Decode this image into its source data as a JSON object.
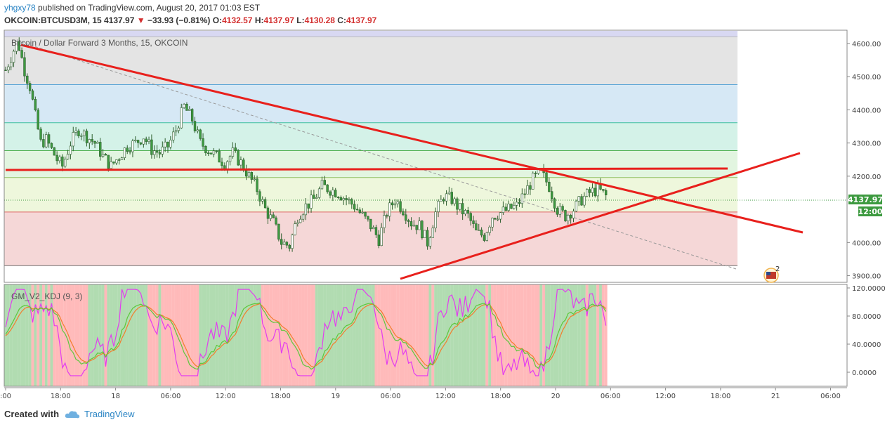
{
  "header": {
    "user": "yhgxy78",
    "published": "published on TradingView.com, August 20, 2017 01:03 EST"
  },
  "quote": {
    "symbol": "OKCOIN:BTCUSD3M, 15",
    "last": "4137.97",
    "change_arrow": "▼",
    "change": "−33.93 (−0.81%)",
    "o_label": "O:",
    "o": "4132.57",
    "h_label": "H:",
    "h": "4137.97",
    "l_label": "L:",
    "l": "4130.28",
    "c_label": "C:",
    "c": "4137.97"
  },
  "price_badge": {
    "value": "4137.97",
    "time": "12:00"
  },
  "footer": {
    "created_with": "Created with",
    "brand": "TradingView"
  },
  "colors": {
    "trendline": "#e8201c",
    "candle": "#3d9a40",
    "k_line": "#e33cf0",
    "d_line": "#f37d2c",
    "j_line": "#5cc83b",
    "up_shade": "#a8d8a8",
    "down_shade": "#ffb3b3"
  },
  "chart_data": [
    {
      "type": "candlestick",
      "title": "Bitcoin / Dollar Forward 3 Months, 15, OKCOIN",
      "ylim": [
        3880,
        4640
      ],
      "y_ticks": [
        {
          "v": 4600,
          "label": "4600.00"
        },
        {
          "v": 4500,
          "label": "4500.00"
        },
        {
          "v": 4400,
          "label": "4400.00"
        },
        {
          "v": 4300,
          "label": "4300.00"
        },
        {
          "v": 4200,
          "label": "4200.00"
        },
        {
          "v": 4000,
          "label": "4000.00"
        },
        {
          "v": 3900,
          "label": "3900.00"
        }
      ],
      "x_ticks": [
        ":00",
        "18:00",
        "18",
        "06:00",
        "12:00",
        "18:00",
        "19",
        "06:00",
        "12:00",
        "18:00",
        "20",
        "06:00",
        "12:00",
        "18:00",
        "21",
        "06:00"
      ],
      "fib_levels": [
        4620,
        4476,
        4361,
        4277,
        4196,
        4092,
        3930
      ],
      "trend_points": [
        [
          0,
          4520
        ],
        [
          2,
          4560
        ],
        [
          4,
          4600
        ],
        [
          5,
          4590
        ],
        [
          7,
          4520
        ],
        [
          9,
          4470
        ],
        [
          11,
          4380
        ],
        [
          13,
          4300
        ],
        [
          15,
          4310
        ],
        [
          17,
          4280
        ],
        [
          19,
          4250
        ],
        [
          21,
          4230
        ],
        [
          24,
          4300
        ],
        [
          27,
          4340
        ],
        [
          30,
          4320
        ],
        [
          33,
          4300
        ],
        [
          36,
          4260
        ],
        [
          39,
          4230
        ],
        [
          42,
          4260
        ],
        [
          45,
          4290
        ],
        [
          48,
          4300
        ],
        [
          51,
          4320
        ],
        [
          54,
          4280
        ],
        [
          57,
          4270
        ],
        [
          60,
          4290
        ],
        [
          63,
          4340
        ],
        [
          66,
          4410
        ],
        [
          69,
          4370
        ],
        [
          72,
          4300
        ],
        [
          75,
          4280
        ],
        [
          78,
          4260
        ],
        [
          81,
          4240
        ],
        [
          84,
          4270
        ],
        [
          87,
          4240
        ],
        [
          90,
          4200
        ],
        [
          93,
          4160
        ],
        [
          96,
          4100
        ],
        [
          99,
          4060
        ],
        [
          102,
          4000
        ],
        [
          105,
          3990
        ],
        [
          108,
          4080
        ],
        [
          111,
          4110
        ],
        [
          114,
          4130
        ],
        [
          117,
          4170
        ],
        [
          120,
          4160
        ],
        [
          123,
          4150
        ],
        [
          126,
          4130
        ],
        [
          129,
          4110
        ],
        [
          132,
          4080
        ],
        [
          135,
          4050
        ],
        [
          138,
          4010
        ],
        [
          141,
          4090
        ],
        [
          144,
          4130
        ],
        [
          147,
          4100
        ],
        [
          150,
          4060
        ],
        [
          153,
          4050
        ],
        [
          156,
          4000
        ],
        [
          159,
          4090
        ],
        [
          162,
          4140
        ],
        [
          165,
          4130
        ],
        [
          168,
          4100
        ],
        [
          171,
          4080
        ],
        [
          174,
          4030
        ],
        [
          177,
          4020
        ],
        [
          180,
          4080
        ],
        [
          183,
          4090
        ],
        [
          186,
          4100
        ],
        [
          189,
          4110
        ],
        [
          192,
          4150
        ],
        [
          195,
          4190
        ],
        [
          198,
          4210
        ],
        [
          201,
          4170
        ],
        [
          204,
          4100
        ],
        [
          207,
          4080
        ],
        [
          210,
          4100
        ],
        [
          213,
          4130
        ],
        [
          216,
          4150
        ],
        [
          219,
          4160
        ],
        [
          222,
          4140
        ]
      ],
      "label_level": 4095
    },
    {
      "type": "line",
      "title": "GM_V2_KDJ (9, 3)",
      "ylim": [
        -20,
        125
      ],
      "y_ticks": [
        {
          "v": 120,
          "label": "120.0000"
        },
        {
          "v": 80,
          "label": "80.0000"
        },
        {
          "v": 40,
          "label": "40.0000"
        },
        {
          "v": 0,
          "label": "0.0000"
        }
      ]
    }
  ]
}
